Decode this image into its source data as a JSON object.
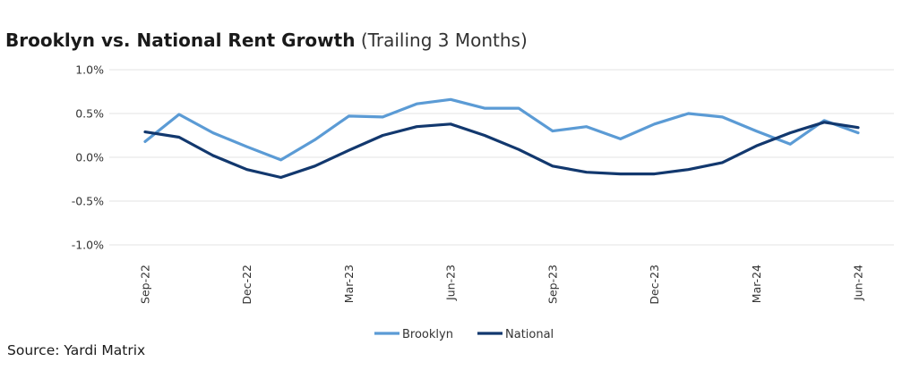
{
  "title": "Brooklyn vs. National Rent Growth",
  "subtitle": "(Trailing 3 Months)",
  "source": "Source: Yardi Matrix",
  "colors": {
    "Brooklyn": "#5b9bd5",
    "National": "#12386e",
    "grid": "#e3e3e3"
  },
  "chart_data": {
    "type": "line",
    "title": "Brooklyn vs. National Rent Growth",
    "subtitle": "(Trailing 3 Months)",
    "x": [
      "Sep-22",
      "Oct-22",
      "Nov-22",
      "Dec-22",
      "Jan-23",
      "Feb-23",
      "Mar-23",
      "Apr-23",
      "May-23",
      "Jun-23",
      "Jul-23",
      "Aug-23",
      "Sep-23",
      "Oct-23",
      "Nov-23",
      "Dec-23",
      "Jan-24",
      "Feb-24",
      "Mar-24",
      "Apr-24",
      "May-24",
      "Jun-24"
    ],
    "x_tick_labels": [
      "Sep-22",
      "Dec-22",
      "Mar-23",
      "Jun-23",
      "Sep-23",
      "Dec-23",
      "Mar-24",
      "Jun-24"
    ],
    "ylim": [
      -1.0,
      1.0
    ],
    "y_ticks": [
      1.0,
      0.5,
      0.0,
      -0.5,
      -1.0
    ],
    "y_tick_labels": [
      "1.0%",
      "0.5%",
      "0.0%",
      "-0.5%",
      "-1.0%"
    ],
    "grid": true,
    "legend_position": "bottom-center",
    "series": [
      {
        "name": "Brooklyn",
        "values": [
          0.18,
          0.49,
          0.28,
          0.12,
          -0.03,
          0.2,
          0.47,
          0.46,
          0.61,
          0.66,
          0.56,
          0.56,
          0.3,
          0.35,
          0.21,
          0.38,
          0.5,
          0.46,
          0.3,
          0.15,
          0.42,
          0.28
        ]
      },
      {
        "name": "National",
        "values": [
          0.29,
          0.23,
          0.02,
          -0.14,
          -0.23,
          -0.1,
          0.08,
          0.25,
          0.35,
          0.38,
          0.25,
          0.09,
          -0.1,
          -0.17,
          -0.19,
          -0.19,
          -0.14,
          -0.06,
          0.13,
          0.28,
          0.4,
          0.34
        ]
      }
    ]
  }
}
